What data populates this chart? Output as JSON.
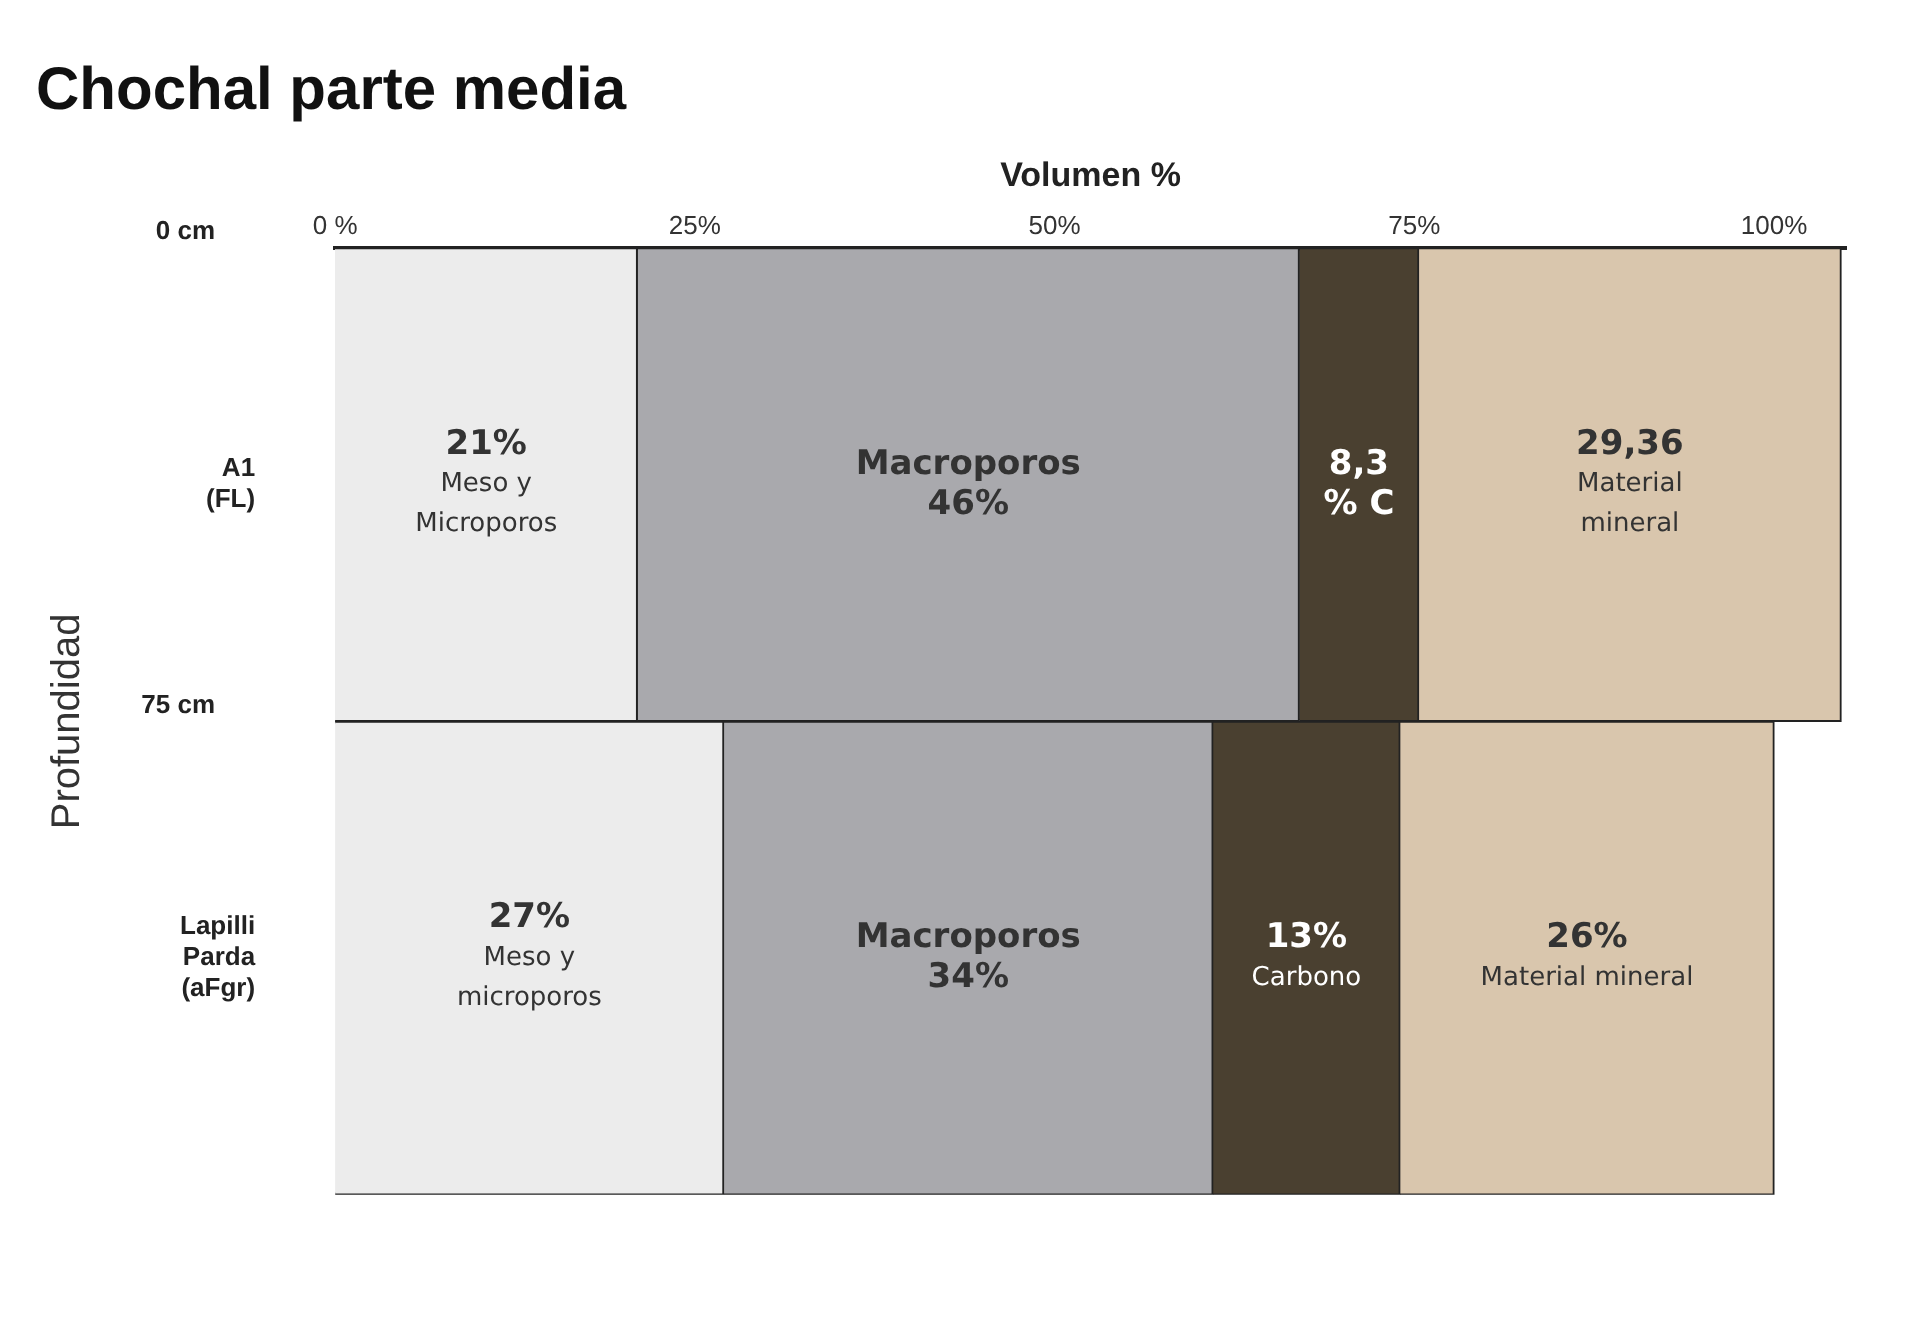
{
  "chart_data": {
    "type": "bar",
    "orientation": "horizontal",
    "stacked": true,
    "title": "Chochal parte media",
    "xlabel": "Volumen %",
    "ylabel": "Profundidad",
    "categories": [
      "A1\n(FL)",
      "Lapilli\nParda\n(aFgr)"
    ],
    "series": [
      {
        "color": "#ececec",
        "values": [
          21,
          27
        ],
        "value_labels": [
          "21%\nMeso y\nMicroporos",
          "27%\nMeso y\nmicroporos"
        ]
      },
      {
        "color": "#a9a9ad",
        "values": [
          46,
          34
        ],
        "value_labels": [
          "Macroporos\n46%",
          "Macroporos\n34%"
        ]
      },
      {
        "color": "#4a4030",
        "values": [
          8.3,
          13
        ],
        "value_labels": [
          "8,3\n% C",
          "13%\nCarbono"
        ]
      },
      {
        "color": "#d9c6ad",
        "values": [
          29.36,
          26
        ],
        "value_labels": [
          "29,36\nMaterial\nmineral",
          "26%\nMaterial mineral"
        ]
      }
    ],
    "xlim": [
      0,
      105
    ],
    "xticks": [
      {
        "value": 0,
        "label": "0 %"
      },
      {
        "value": 25,
        "label": "25%"
      },
      {
        "value": 50,
        "label": "50%"
      },
      {
        "value": 75,
        "label": "75%"
      },
      {
        "value": 100,
        "label": "100%"
      }
    ],
    "annotations": [
      "0 cm",
      "75 cm"
    ],
    "grid": false,
    "legend": false
  }
}
